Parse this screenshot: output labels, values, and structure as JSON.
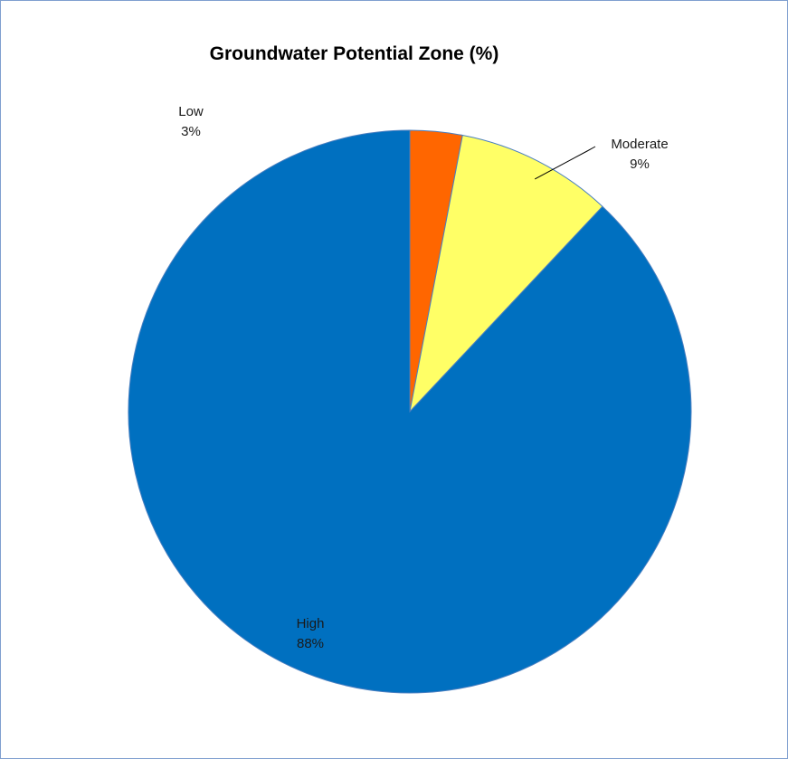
{
  "chart_data": {
    "type": "pie",
    "title": "Groundwater Potential Zone (%)",
    "slices": [
      {
        "name": "Low",
        "value": 3,
        "label_pct": "3%",
        "color": "#ff6600"
      },
      {
        "name": "Moderate",
        "value": 9,
        "label_pct": "9%",
        "color": "#ffff66"
      },
      {
        "name": "High",
        "value": 88,
        "label_pct": "88%",
        "color": "#0070c0"
      }
    ],
    "legend": "none",
    "data_labels": "category name and percentage"
  }
}
